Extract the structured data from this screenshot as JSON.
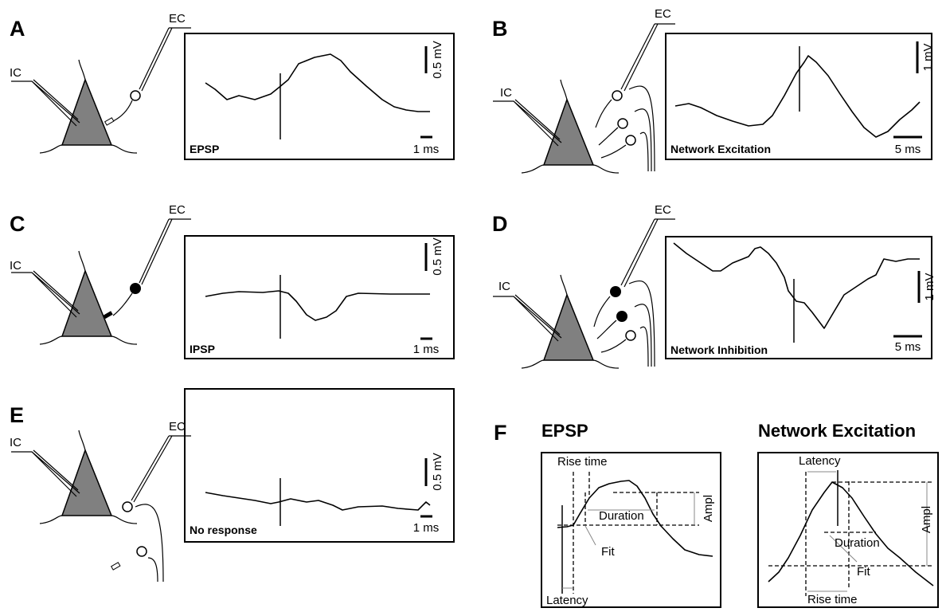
{
  "panels": [
    {
      "letter": "A",
      "ic": "IC",
      "ec": "EC",
      "voltage_scale": "0.5 mV",
      "time_scale": "1 ms",
      "trace_label": "EPSP"
    },
    {
      "letter": "B",
      "ic": "IC",
      "ec": "EC",
      "voltage_scale": "1 mV",
      "time_scale": "5 ms",
      "trace_label": "Network Excitation"
    },
    {
      "letter": "C",
      "ic": "IC",
      "ec": "EC",
      "voltage_scale": "0.5 mV",
      "time_scale": "1 ms",
      "trace_label": "IPSP"
    },
    {
      "letter": "D",
      "ic": "IC",
      "ec": "EC",
      "voltage_scale": "1 mV",
      "time_scale": "5 ms",
      "trace_label": "Network Inhibition"
    },
    {
      "letter": "E",
      "ic": "IC",
      "ec": "EC",
      "voltage_scale": "0.5 mV",
      "time_scale": "1 ms",
      "trace_label": "No response"
    }
  ],
  "panel_f": {
    "letter": "F",
    "plots": [
      {
        "title": "EPSP",
        "rise_time": "Rise time",
        "duration": "Duration",
        "amplitude": "Ampl",
        "fit": "Fit",
        "latency": "Latency"
      },
      {
        "title": "Network Excitation",
        "rise_time": "Rise time",
        "duration": "Duration",
        "amplitude": "Ampl",
        "fit": "Fit",
        "latency": "Latency"
      }
    ]
  }
}
